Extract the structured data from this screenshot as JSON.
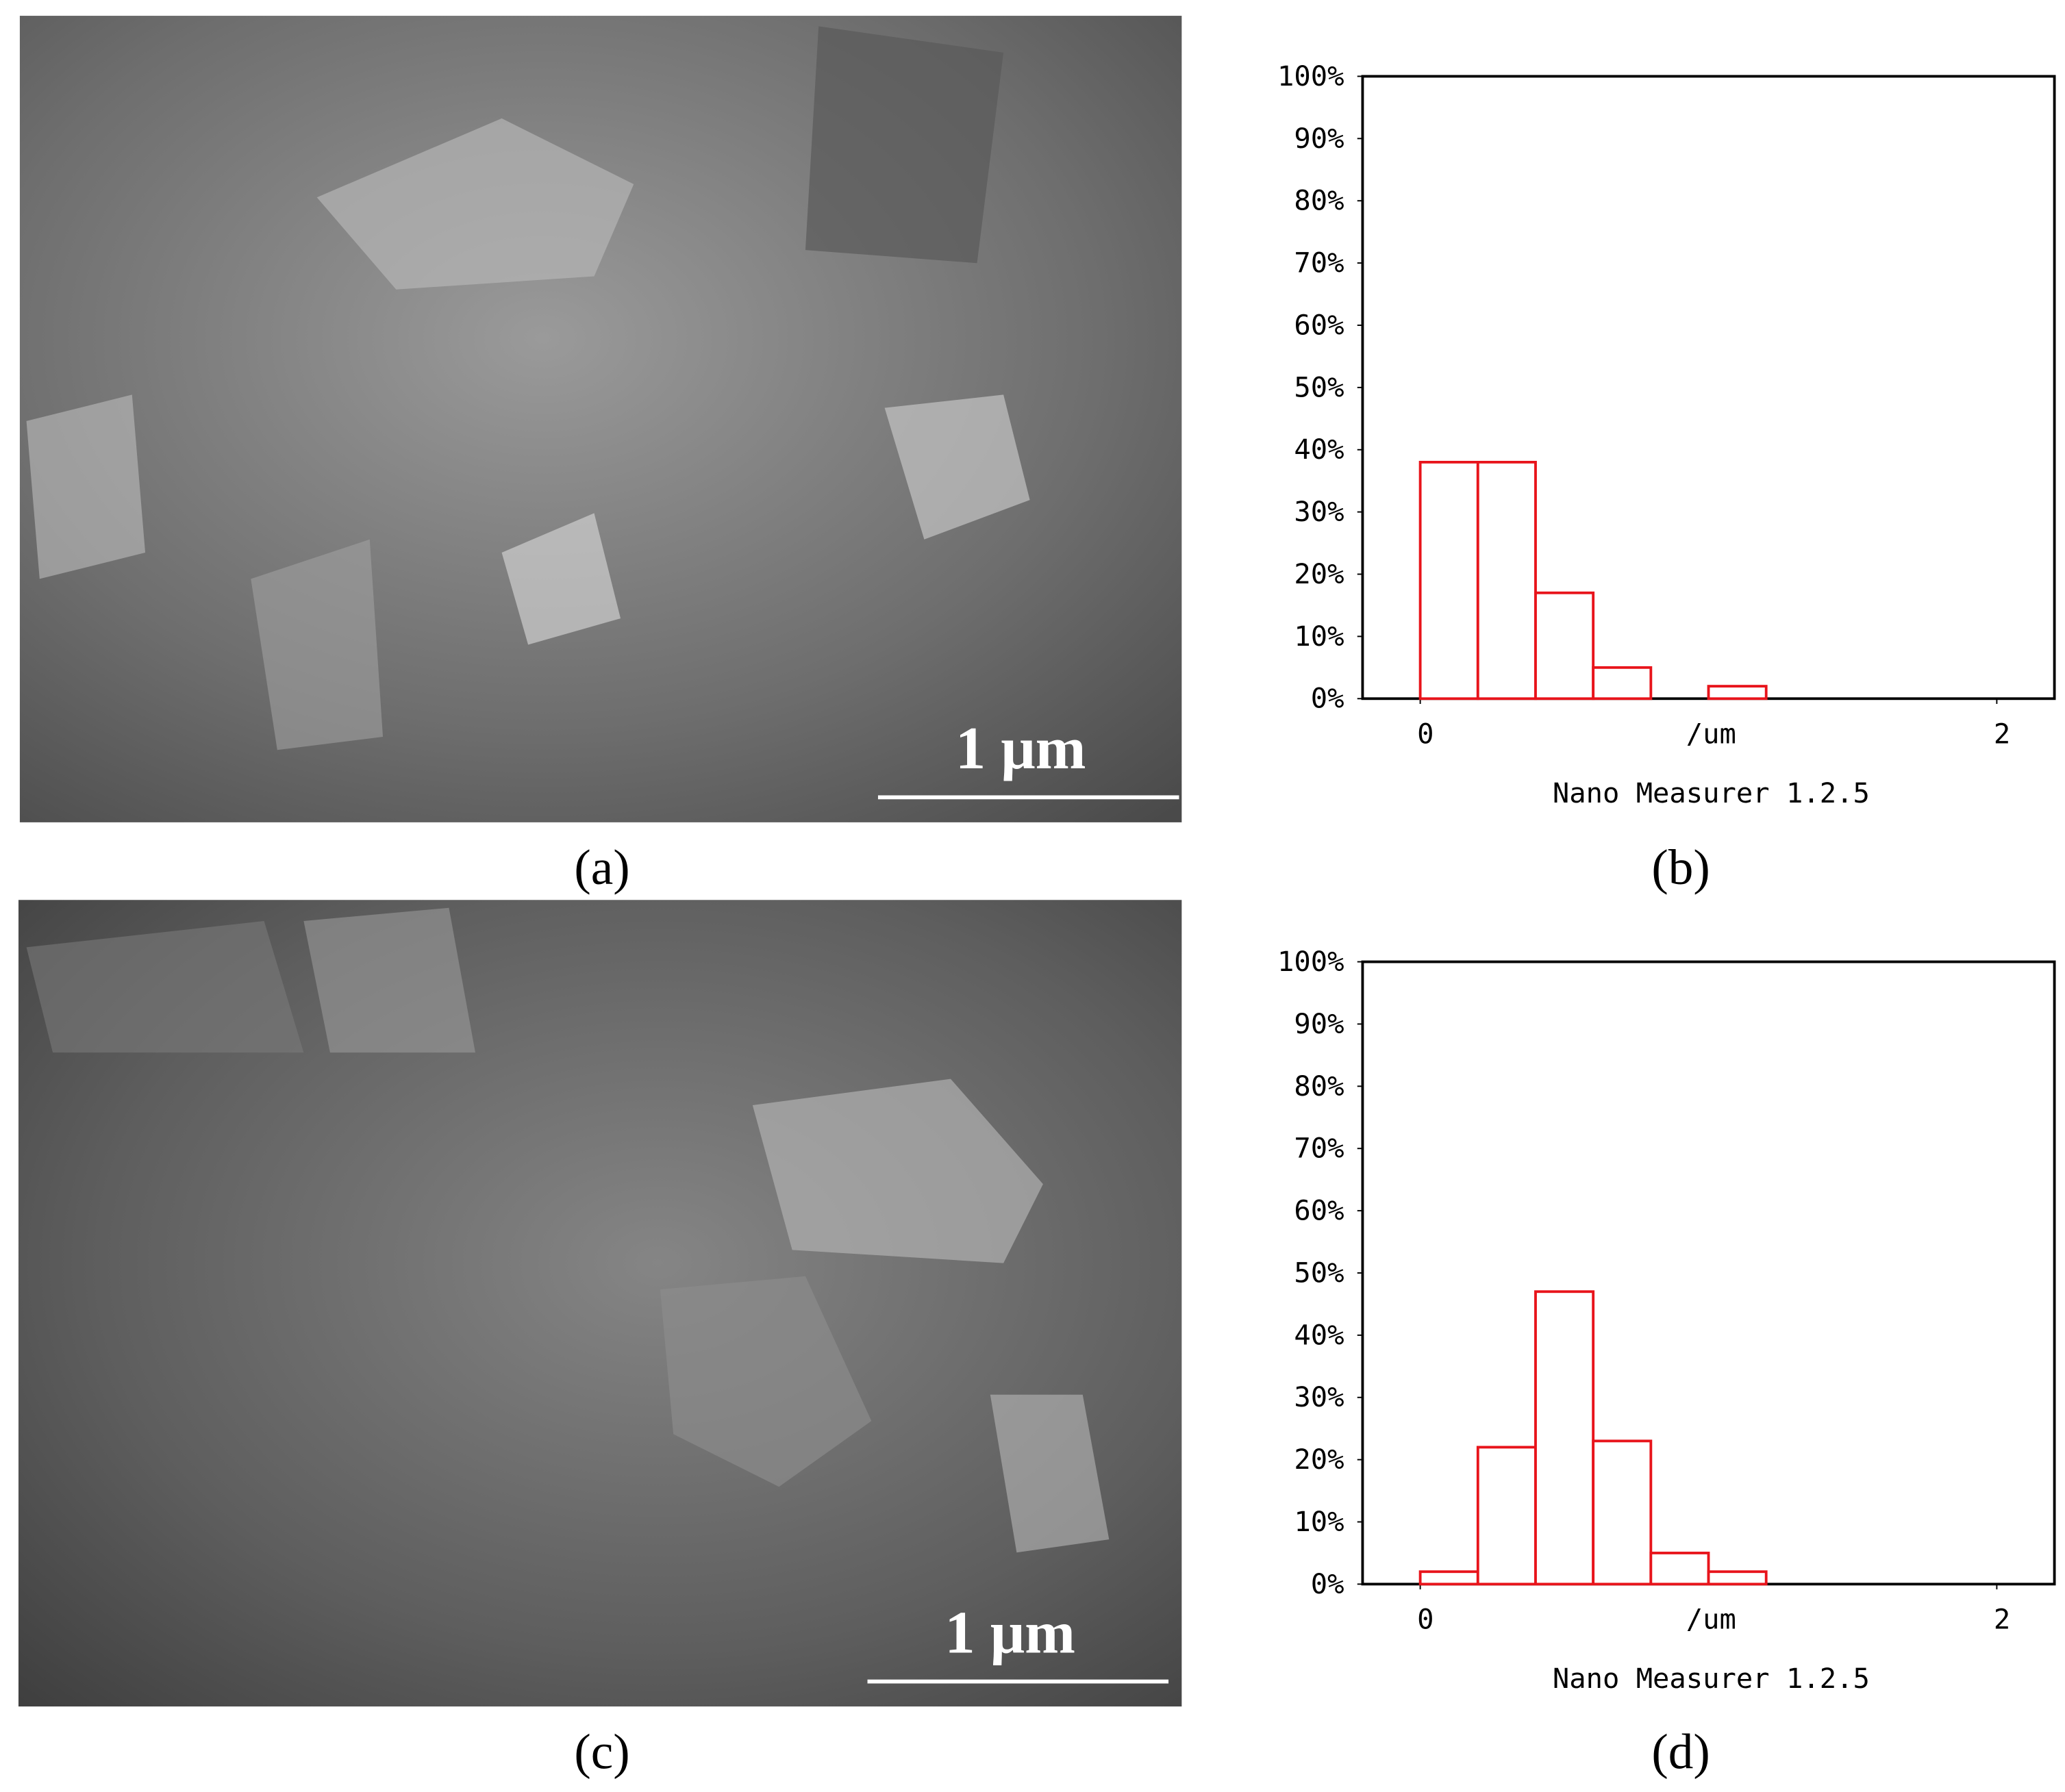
{
  "figure": {
    "panel_labels": [
      "(a)",
      "(b)",
      "(c)",
      "(d)"
    ],
    "scale_bars": [
      "1 μm",
      "1 μm"
    ]
  },
  "chart_data": [
    {
      "type": "histogram",
      "xlabel": "/um",
      "source": "Nano Measurer 1.2.5",
      "bins": [
        0,
        0.2,
        0.4,
        0.6,
        0.8,
        1.0,
        1.2
      ],
      "values": [
        38,
        38,
        17,
        5,
        0,
        2
      ],
      "color": "#e8141b",
      "xlim": [
        -0.2,
        2.2
      ],
      "xticks": [
        0,
        2
      ],
      "ylim": [
        0,
        100
      ],
      "yticks": [
        {
          "value": 0,
          "label": "0%"
        },
        {
          "value": 10,
          "label": "10%"
        },
        {
          "value": 20,
          "label": "20%"
        },
        {
          "value": 30,
          "label": "30%"
        },
        {
          "value": 40,
          "label": "40%"
        },
        {
          "value": 50,
          "label": "50%"
        },
        {
          "value": 60,
          "label": "60%"
        },
        {
          "value": 70,
          "label": "70%"
        },
        {
          "value": 80,
          "label": "80%"
        },
        {
          "value": 90,
          "label": "90%"
        },
        {
          "value": 100,
          "label": "100%"
        }
      ],
      "grid": false
    },
    {
      "type": "histogram",
      "xlabel": "/um",
      "source": "Nano Measurer 1.2.5",
      "bins": [
        0,
        0.2,
        0.4,
        0.6,
        0.8,
        1.0,
        1.2
      ],
      "values": [
        2,
        22,
        47,
        23,
        5,
        2
      ],
      "color": "#e8141b",
      "xlim": [
        -0.2,
        2.2
      ],
      "xticks": [
        0,
        2
      ],
      "ylim": [
        0,
        100
      ],
      "yticks": [
        {
          "value": 0,
          "label": "0%"
        },
        {
          "value": 10,
          "label": "10%"
        },
        {
          "value": 20,
          "label": "20%"
        },
        {
          "value": 30,
          "label": "30%"
        },
        {
          "value": 40,
          "label": "40%"
        },
        {
          "value": 50,
          "label": "50%"
        },
        {
          "value": 60,
          "label": "60%"
        },
        {
          "value": 70,
          "label": "70%"
        },
        {
          "value": 80,
          "label": "80%"
        },
        {
          "value": 90,
          "label": "90%"
        },
        {
          "value": 100,
          "label": "100%"
        }
      ],
      "grid": false
    }
  ]
}
